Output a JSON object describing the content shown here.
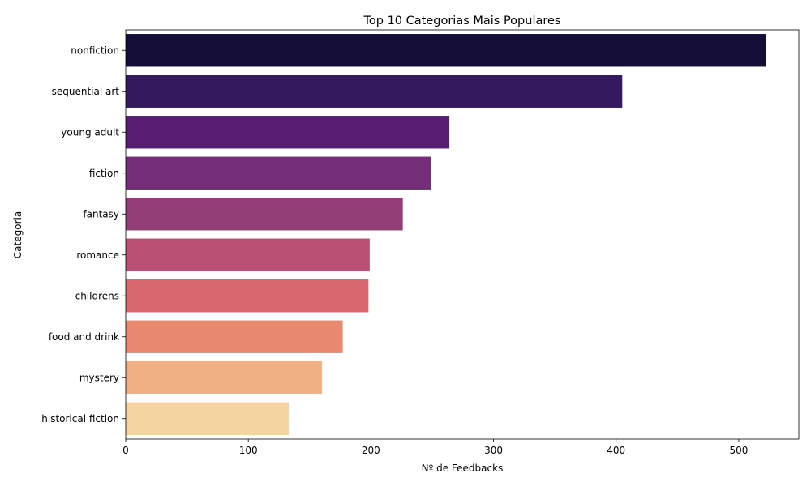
{
  "chart_data": {
    "type": "bar",
    "orientation": "horizontal",
    "title": "Top 10 Categorias Mais Populares",
    "xlabel": "Nº de Feedbacks",
    "ylabel": "Categoria",
    "xlim": [
      0,
      549
    ],
    "xticks": [
      0,
      100,
      200,
      300,
      400,
      500
    ],
    "grid": false,
    "legend": "none",
    "categories": [
      "nonfiction",
      "sequential art",
      "young adult",
      "fiction",
      "fantasy",
      "romance",
      "childrens",
      "food and drink",
      "mystery",
      "historical fiction"
    ],
    "values": [
      522,
      405,
      264,
      249,
      226,
      199,
      198,
      177,
      160,
      133
    ],
    "colors": [
      "#140e36",
      "#331a5e",
      "#561d73",
      "#732f78",
      "#933e77",
      "#b94f73",
      "#d8676f",
      "#e88a70",
      "#f0b084",
      "#f4d4a0"
    ]
  }
}
